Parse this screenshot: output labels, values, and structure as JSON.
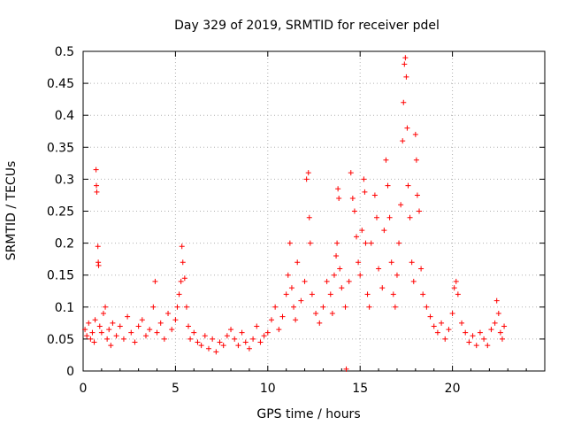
{
  "chart_data": {
    "type": "scatter",
    "title": "Day 329 of 2019, SRMTID for receiver pdel",
    "xlabel": "GPS time / hours",
    "ylabel": "SRMTID / TECUs",
    "xlim": [
      0,
      25
    ],
    "ylim": [
      0,
      0.5
    ],
    "x_ticks": [
      0,
      5,
      10,
      15,
      20
    ],
    "x_tick_labels": [
      "0",
      "5",
      "10",
      "15",
      "20"
    ],
    "y_ticks": [
      0,
      0.05,
      0.1,
      0.15,
      0.2,
      0.25,
      0.3,
      0.35,
      0.4,
      0.45,
      0.5
    ],
    "y_tick_labels": [
      "0",
      "0.05",
      "0.1",
      "0.15",
      "0.2",
      "0.25",
      "0.3",
      "0.35",
      "0.4",
      "0.45",
      "0.5"
    ],
    "grid": true,
    "marker": "plus",
    "series": [
      {
        "name": "SRMTID",
        "color": "#ff0000",
        "points": [
          [
            0.1,
            0.065
          ],
          [
            0.2,
            0.055
          ],
          [
            0.3,
            0.075
          ],
          [
            0.4,
            0.05
          ],
          [
            0.5,
            0.06
          ],
          [
            0.6,
            0.045
          ],
          [
            0.65,
            0.08
          ],
          [
            0.7,
            0.315
          ],
          [
            0.72,
            0.29
          ],
          [
            0.74,
            0.28
          ],
          [
            0.8,
            0.195
          ],
          [
            0.82,
            0.17
          ],
          [
            0.84,
            0.165
          ],
          [
            0.9,
            0.07
          ],
          [
            1.0,
            0.06
          ],
          [
            1.1,
            0.09
          ],
          [
            1.2,
            0.1
          ],
          [
            1.3,
            0.05
          ],
          [
            1.4,
            0.065
          ],
          [
            1.5,
            0.04
          ],
          [
            1.6,
            0.075
          ],
          [
            1.8,
            0.055
          ],
          [
            2.0,
            0.07
          ],
          [
            2.2,
            0.05
          ],
          [
            2.4,
            0.085
          ],
          [
            2.6,
            0.06
          ],
          [
            2.8,
            0.045
          ],
          [
            3.0,
            0.07
          ],
          [
            3.2,
            0.08
          ],
          [
            3.4,
            0.055
          ],
          [
            3.6,
            0.065
          ],
          [
            3.8,
            0.1
          ],
          [
            3.9,
            0.14
          ],
          [
            4.0,
            0.06
          ],
          [
            4.2,
            0.075
          ],
          [
            4.4,
            0.05
          ],
          [
            4.6,
            0.09
          ],
          [
            4.8,
            0.065
          ],
          [
            5.0,
            0.08
          ],
          [
            5.1,
            0.1
          ],
          [
            5.2,
            0.12
          ],
          [
            5.3,
            0.14
          ],
          [
            5.35,
            0.195
          ],
          [
            5.4,
            0.17
          ],
          [
            5.5,
            0.145
          ],
          [
            5.6,
            0.1
          ],
          [
            5.7,
            0.07
          ],
          [
            5.8,
            0.05
          ],
          [
            6.0,
            0.06
          ],
          [
            6.2,
            0.045
          ],
          [
            6.4,
            0.04
          ],
          [
            6.6,
            0.055
          ],
          [
            6.8,
            0.035
          ],
          [
            7.0,
            0.05
          ],
          [
            7.2,
            0.03
          ],
          [
            7.4,
            0.045
          ],
          [
            7.6,
            0.04
          ],
          [
            7.8,
            0.055
          ],
          [
            8.0,
            0.065
          ],
          [
            8.2,
            0.05
          ],
          [
            8.4,
            0.04
          ],
          [
            8.6,
            0.06
          ],
          [
            8.8,
            0.045
          ],
          [
            9.0,
            0.035
          ],
          [
            9.2,
            0.05
          ],
          [
            9.4,
            0.07
          ],
          [
            9.6,
            0.045
          ],
          [
            9.8,
            0.055
          ],
          [
            10.0,
            0.06
          ],
          [
            10.2,
            0.08
          ],
          [
            10.4,
            0.1
          ],
          [
            10.6,
            0.065
          ],
          [
            10.8,
            0.085
          ],
          [
            11.0,
            0.12
          ],
          [
            11.1,
            0.15
          ],
          [
            11.2,
            0.2
          ],
          [
            11.3,
            0.13
          ],
          [
            11.4,
            0.1
          ],
          [
            11.5,
            0.08
          ],
          [
            11.6,
            0.17
          ],
          [
            11.8,
            0.11
          ],
          [
            12.0,
            0.14
          ],
          [
            12.1,
            0.3
          ],
          [
            12.2,
            0.31
          ],
          [
            12.25,
            0.24
          ],
          [
            12.3,
            0.2
          ],
          [
            12.4,
            0.12
          ],
          [
            12.6,
            0.09
          ],
          [
            12.8,
            0.075
          ],
          [
            13.0,
            0.1
          ],
          [
            13.2,
            0.14
          ],
          [
            13.4,
            0.12
          ],
          [
            13.5,
            0.09
          ],
          [
            13.6,
            0.15
          ],
          [
            13.7,
            0.18
          ],
          [
            13.75,
            0.2
          ],
          [
            13.8,
            0.285
          ],
          [
            13.85,
            0.27
          ],
          [
            13.9,
            0.16
          ],
          [
            14.0,
            0.13
          ],
          [
            14.2,
            0.1
          ],
          [
            14.25,
            0.003
          ],
          [
            14.4,
            0.14
          ],
          [
            14.5,
            0.31
          ],
          [
            14.6,
            0.27
          ],
          [
            14.7,
            0.25
          ],
          [
            14.8,
            0.21
          ],
          [
            14.9,
            0.17
          ],
          [
            15.0,
            0.15
          ],
          [
            15.1,
            0.22
          ],
          [
            15.2,
            0.3
          ],
          [
            15.25,
            0.28
          ],
          [
            15.3,
            0.2
          ],
          [
            15.4,
            0.12
          ],
          [
            15.5,
            0.1
          ],
          [
            15.6,
            0.2
          ],
          [
            15.8,
            0.275
          ],
          [
            15.9,
            0.24
          ],
          [
            16.0,
            0.16
          ],
          [
            16.2,
            0.13
          ],
          [
            16.3,
            0.22
          ],
          [
            16.4,
            0.33
          ],
          [
            16.5,
            0.29
          ],
          [
            16.6,
            0.24
          ],
          [
            16.7,
            0.17
          ],
          [
            16.8,
            0.12
          ],
          [
            16.9,
            0.1
          ],
          [
            17.0,
            0.15
          ],
          [
            17.1,
            0.2
          ],
          [
            17.2,
            0.26
          ],
          [
            17.3,
            0.36
          ],
          [
            17.35,
            0.42
          ],
          [
            17.4,
            0.48
          ],
          [
            17.45,
            0.49
          ],
          [
            17.5,
            0.46
          ],
          [
            17.55,
            0.38
          ],
          [
            17.6,
            0.29
          ],
          [
            17.7,
            0.24
          ],
          [
            17.8,
            0.17
          ],
          [
            17.9,
            0.14
          ],
          [
            18.0,
            0.37
          ],
          [
            18.05,
            0.33
          ],
          [
            18.1,
            0.275
          ],
          [
            18.2,
            0.25
          ],
          [
            18.3,
            0.16
          ],
          [
            18.4,
            0.12
          ],
          [
            18.6,
            0.1
          ],
          [
            18.8,
            0.085
          ],
          [
            19.0,
            0.07
          ],
          [
            19.2,
            0.06
          ],
          [
            19.4,
            0.075
          ],
          [
            19.6,
            0.05
          ],
          [
            19.8,
            0.065
          ],
          [
            20.0,
            0.09
          ],
          [
            20.1,
            0.13
          ],
          [
            20.2,
            0.14
          ],
          [
            20.3,
            0.12
          ],
          [
            20.5,
            0.075
          ],
          [
            20.7,
            0.06
          ],
          [
            20.9,
            0.045
          ],
          [
            21.1,
            0.055
          ],
          [
            21.3,
            0.04
          ],
          [
            21.5,
            0.06
          ],
          [
            21.7,
            0.05
          ],
          [
            21.9,
            0.04
          ],
          [
            22.1,
            0.065
          ],
          [
            22.3,
            0.075
          ],
          [
            22.4,
            0.11
          ],
          [
            22.5,
            0.09
          ],
          [
            22.6,
            0.06
          ],
          [
            22.7,
            0.05
          ],
          [
            22.8,
            0.07
          ]
        ]
      }
    ]
  }
}
